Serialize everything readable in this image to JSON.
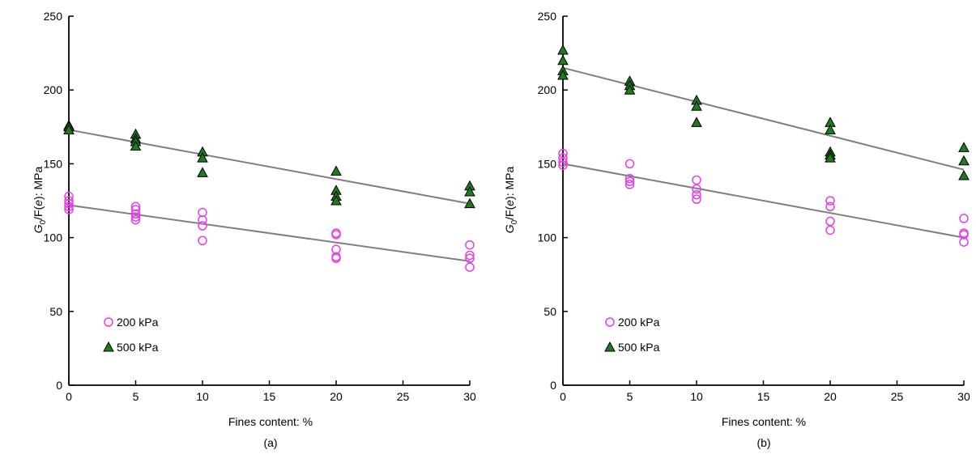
{
  "chart_data": [
    {
      "panel": "(a)",
      "type": "scatter",
      "xlabel": "Fines content: %",
      "ylabel_parts": [
        "G",
        "0",
        "/F(",
        "e",
        "): MPa"
      ],
      "xlim": [
        0,
        30
      ],
      "ylim": [
        0,
        250
      ],
      "xticks": [
        0,
        5,
        10,
        15,
        20,
        25,
        30
      ],
      "yticks": [
        0,
        50,
        100,
        150,
        200,
        250
      ],
      "legend_position": "lower-left",
      "series": [
        {
          "name": "200 kPa",
          "marker": "open-circle",
          "color": "#e83ee8",
          "points": [
            [
              0,
              128
            ],
            [
              0,
              125
            ],
            [
              0,
              123
            ],
            [
              0,
              121
            ],
            [
              0,
              119
            ],
            [
              5,
              121
            ],
            [
              5,
              119
            ],
            [
              5,
              116
            ],
            [
              5,
              114
            ],
            [
              5,
              112
            ],
            [
              10,
              117
            ],
            [
              10,
              112
            ],
            [
              10,
              108
            ],
            [
              10,
              98
            ],
            [
              20,
              103
            ],
            [
              20,
              102
            ],
            [
              20,
              92
            ],
            [
              20,
              87
            ],
            [
              20,
              86
            ],
            [
              30,
              95
            ],
            [
              30,
              88
            ],
            [
              30,
              86
            ],
            [
              30,
              80
            ]
          ],
          "trend": [
            [
              0,
              122
            ],
            [
              30,
              84
            ]
          ]
        },
        {
          "name": "500 kPa",
          "marker": "filled-triangle",
          "color": "#1e7b1e",
          "points": [
            [
              0,
              176
            ],
            [
              0,
              175
            ],
            [
              0,
              173
            ],
            [
              5,
              170
            ],
            [
              5,
              167
            ],
            [
              5,
              165
            ],
            [
              5,
              162
            ],
            [
              10,
              158
            ],
            [
              10,
              154
            ],
            [
              10,
              144
            ],
            [
              20,
              145
            ],
            [
              20,
              132
            ],
            [
              20,
              128
            ],
            [
              20,
              125
            ],
            [
              30,
              135
            ],
            [
              30,
              131
            ],
            [
              30,
              123
            ]
          ],
          "trend": [
            [
              0,
              173
            ],
            [
              30,
              123
            ]
          ]
        }
      ]
    },
    {
      "panel": "(b)",
      "type": "scatter",
      "xlabel": "Fines content: %",
      "ylabel_parts": [
        "G",
        "0",
        "/F(",
        "e",
        "): MPa"
      ],
      "xlim": [
        0,
        30
      ],
      "ylim": [
        0,
        250
      ],
      "xticks": [
        0,
        5,
        10,
        15,
        20,
        25,
        30
      ],
      "yticks": [
        0,
        50,
        100,
        150,
        200,
        250
      ],
      "legend_position": "lower-left",
      "series": [
        {
          "name": "200 kPa",
          "marker": "open-circle",
          "color": "#e83ee8",
          "points": [
            [
              0,
              157
            ],
            [
              0,
              154
            ],
            [
              0,
              151
            ],
            [
              0,
              149
            ],
            [
              5,
              150
            ],
            [
              5,
              140
            ],
            [
              5,
              138
            ],
            [
              5,
              136
            ],
            [
              10,
              139
            ],
            [
              10,
              133
            ],
            [
              10,
              129
            ],
            [
              10,
              126
            ],
            [
              20,
              125
            ],
            [
              20,
              121
            ],
            [
              20,
              111
            ],
            [
              20,
              105
            ],
            [
              30,
              113
            ],
            [
              30,
              103
            ],
            [
              30,
              102
            ],
            [
              30,
              97
            ]
          ],
          "trend": [
            [
              0,
              150
            ],
            [
              30,
              100
            ]
          ]
        },
        {
          "name": "500 kPa",
          "marker": "filled-triangle",
          "color": "#1e7b1e",
          "points": [
            [
              0,
              227
            ],
            [
              0,
              220
            ],
            [
              0,
              213
            ],
            [
              0,
              210
            ],
            [
              5,
              206
            ],
            [
              5,
              203
            ],
            [
              5,
              200
            ],
            [
              10,
              193
            ],
            [
              10,
              189
            ],
            [
              10,
              178
            ],
            [
              20,
              178
            ],
            [
              20,
              173
            ],
            [
              20,
              158
            ],
            [
              20,
              156
            ],
            [
              20,
              154
            ],
            [
              30,
              161
            ],
            [
              30,
              152
            ],
            [
              30,
              142
            ]
          ],
          "trend": [
            [
              0,
              215
            ],
            [
              30,
              146
            ]
          ]
        }
      ]
    }
  ]
}
